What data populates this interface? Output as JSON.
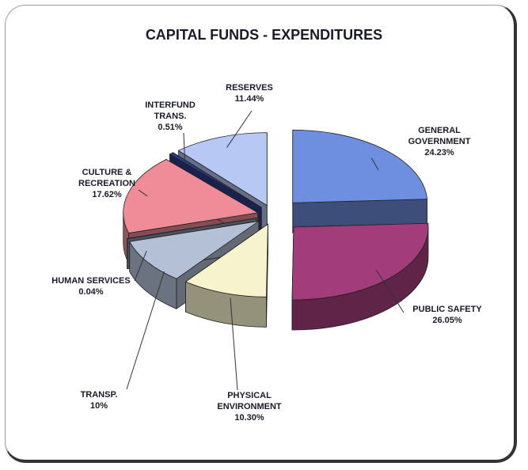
{
  "chart_data": {
    "type": "pie3d",
    "title": "CAPITAL FUNDS - EXPENDITURES",
    "categories": [
      "GENERAL GOVERNMENT",
      "PUBLIC SAFETY",
      "PHYSICAL ENVIRONMENT",
      "TRANSP.",
      "HUMAN SERVICES",
      "CULTURE & RECREATION",
      "INTERFUND TRANS.",
      "RESERVES"
    ],
    "values": [
      24.23,
      26.05,
      10.3,
      10,
      0.04,
      17.62,
      0.51,
      11.44
    ],
    "value_labels": [
      "24.23%",
      "26.05%",
      "10.30%",
      "10%",
      "0.04%",
      "17.62%",
      "0.51%",
      "11.44%"
    ],
    "colors": [
      "#6e8ee0",
      "#a23c7a",
      "#f7f3cc",
      "#b4c0d6",
      "#8a90a8",
      "#f08c98",
      "#2e3c8c",
      "#b8c8f4"
    ]
  }
}
